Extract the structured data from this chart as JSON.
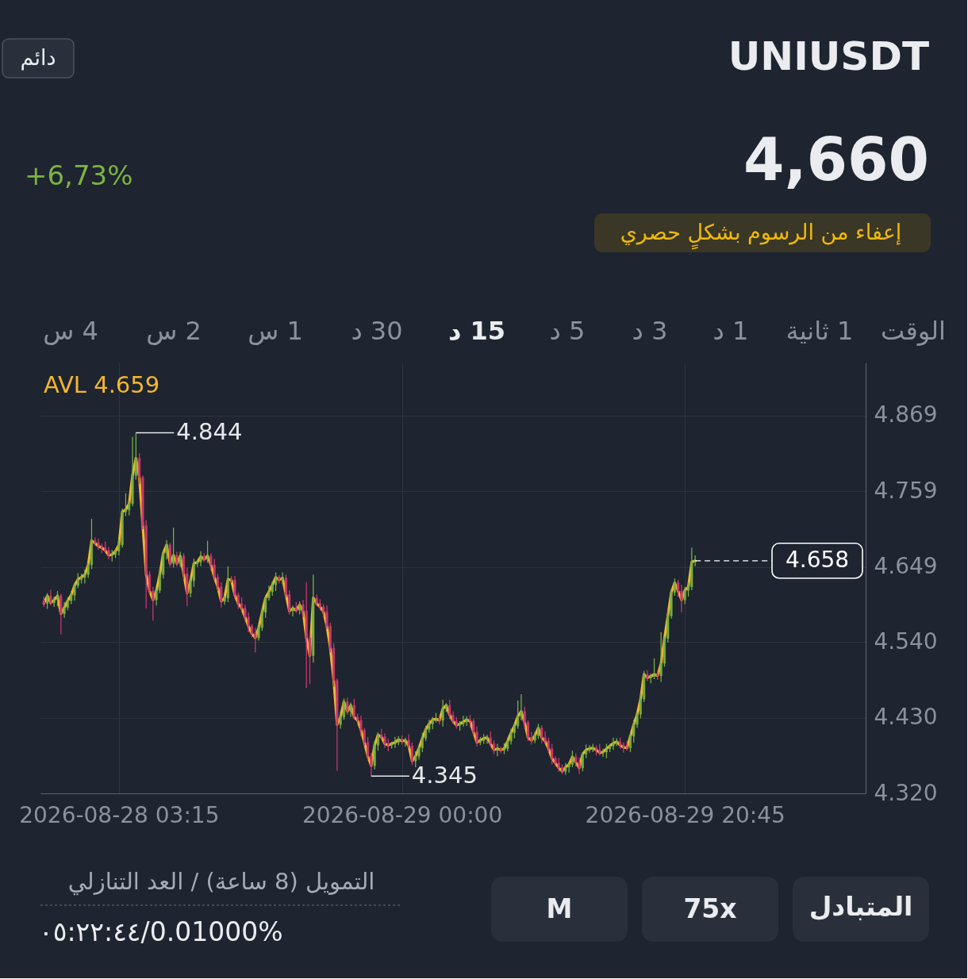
{
  "chart_data": {
    "type": "candlestick",
    "title": "UNIUSDT",
    "annotations": [
      "+6,73%",
      "4,660",
      "إعفاء من الرسوم بشكلٍ حصري",
      "4 س",
      "2 س",
      "1 س",
      "30 د",
      "15 د",
      "5 د",
      "3 د",
      "1 د",
      "1 ثانية",
      "الوقت",
      "دائم",
      "التمويل (8 ساعة) / العد التنازلي",
      "٠٥:٢٢:٤٤/0.01000%",
      "M",
      "75x",
      "المتبادل",
      {
        "text": "4.844",
        "x": "2026-08-28T04:30",
        "y": 4.844
      },
      {
        "text": "4.345",
        "x": "2026-08-28T21:45",
        "y": 4.345
      }
    ],
    "x": [
      "2026-08-27T21:45",
      "2026-08-27T22:00",
      "2026-08-27T22:15",
      "2026-08-27T22:30",
      "2026-08-27T22:45",
      "2026-08-27T23:00",
      "2026-08-27T23:15",
      "2026-08-27T23:30",
      "2026-08-27T23:45",
      "2026-08-28T00:00",
      "2026-08-28T00:15",
      "2026-08-28T00:30",
      "2026-08-28T00:45",
      "2026-08-28T01:00",
      "2026-08-28T01:15",
      "2026-08-28T01:30",
      "2026-08-28T01:45",
      "2026-08-28T02:00",
      "2026-08-28T02:15",
      "2026-08-28T02:30",
      "2026-08-28T02:45",
      "2026-08-28T03:00",
      "2026-08-28T03:15",
      "2026-08-28T03:30",
      "2026-08-28T03:45",
      "2026-08-28T04:00",
      "2026-08-28T04:15",
      "2026-08-28T04:30",
      "2026-08-28T04:45",
      "2026-08-28T05:00",
      "2026-08-28T05:15",
      "2026-08-28T05:30",
      "2026-08-28T05:45",
      "2026-08-28T06:00",
      "2026-08-28T06:15",
      "2026-08-28T06:30",
      "2026-08-28T06:45",
      "2026-08-28T07:00",
      "2026-08-28T07:15",
      "2026-08-28T07:30",
      "2026-08-28T07:45",
      "2026-08-28T08:00",
      "2026-08-28T08:15",
      "2026-08-28T08:30",
      "2026-08-28T08:45",
      "2026-08-28T09:00",
      "2026-08-28T09:15",
      "2026-08-28T09:30",
      "2026-08-28T09:45",
      "2026-08-28T10:00",
      "2026-08-28T10:15",
      "2026-08-28T10:30",
      "2026-08-28T10:45",
      "2026-08-28T11:00",
      "2026-08-28T11:15",
      "2026-08-28T11:30",
      "2026-08-28T11:45",
      "2026-08-28T12:00",
      "2026-08-28T12:15",
      "2026-08-28T12:30",
      "2026-08-28T12:45",
      "2026-08-28T13:00",
      "2026-08-28T13:15",
      "2026-08-28T13:30",
      "2026-08-28T13:45",
      "2026-08-28T14:00",
      "2026-08-28T14:15",
      "2026-08-28T14:30",
      "2026-08-28T14:45",
      "2026-08-28T15:00",
      "2026-08-28T15:15",
      "2026-08-28T15:30",
      "2026-08-28T15:45",
      "2026-08-28T16:00",
      "2026-08-28T16:15",
      "2026-08-28T16:30",
      "2026-08-28T16:45",
      "2026-08-28T17:00",
      "2026-08-28T17:15",
      "2026-08-28T17:30",
      "2026-08-28T17:45",
      "2026-08-28T18:00",
      "2026-08-28T18:15",
      "2026-08-28T18:30",
      "2026-08-28T18:45",
      "2026-08-28T19:00",
      "2026-08-28T19:15",
      "2026-08-28T19:30",
      "2026-08-28T19:45",
      "2026-08-28T20:00",
      "2026-08-28T20:15",
      "2026-08-28T20:30",
      "2026-08-28T20:45",
      "2026-08-28T21:00",
      "2026-08-28T21:15",
      "2026-08-28T21:30",
      "2026-08-28T21:45",
      "2026-08-28T22:00",
      "2026-08-28T22:15",
      "2026-08-28T22:30",
      "2026-08-28T22:45",
      "2026-08-28T23:00",
      "2026-08-28T23:15",
      "2026-08-28T23:30",
      "2026-08-28T23:45",
      "2026-08-29T00:00",
      "2026-08-29T00:15",
      "2026-08-29T00:30",
      "2026-08-29T00:45",
      "2026-08-29T01:00",
      "2026-08-29T01:15",
      "2026-08-29T01:30",
      "2026-08-29T01:45",
      "2026-08-29T02:00",
      "2026-08-29T02:15",
      "2026-08-29T02:30",
      "2026-08-29T02:45",
      "2026-08-29T03:00",
      "2026-08-29T03:15",
      "2026-08-29T03:30",
      "2026-08-29T03:45",
      "2026-08-29T04:00",
      "2026-08-29T04:15",
      "2026-08-29T04:30",
      "2026-08-29T04:45",
      "2026-08-29T05:00",
      "2026-08-29T05:15",
      "2026-08-29T05:30",
      "2026-08-29T05:45",
      "2026-08-29T06:00",
      "2026-08-29T06:15",
      "2026-08-29T06:30",
      "2026-08-29T06:45",
      "2026-08-29T07:00",
      "2026-08-29T07:15",
      "2026-08-29T07:30",
      "2026-08-29T07:45",
      "2026-08-29T08:00",
      "2026-08-29T08:15",
      "2026-08-29T08:30",
      "2026-08-29T08:45",
      "2026-08-29T09:00",
      "2026-08-29T09:15",
      "2026-08-29T09:30",
      "2026-08-29T09:45",
      "2026-08-29T10:00",
      "2026-08-29T10:15",
      "2026-08-29T10:30",
      "2026-08-29T10:45",
      "2026-08-29T11:00",
      "2026-08-29T11:15",
      "2026-08-29T11:30",
      "2026-08-29T11:45",
      "2026-08-29T12:00",
      "2026-08-29T12:15",
      "2026-08-29T12:30",
      "2026-08-29T12:45",
      "2026-08-29T13:00",
      "2026-08-29T13:15",
      "2026-08-29T13:30",
      "2026-08-29T13:45",
      "2026-08-29T14:00",
      "2026-08-29T14:15",
      "2026-08-29T14:30",
      "2026-08-29T14:45",
      "2026-08-29T15:00",
      "2026-08-29T15:15",
      "2026-08-29T15:30",
      "2026-08-29T15:45",
      "2026-08-29T16:00",
      "2026-08-29T16:15",
      "2026-08-29T16:30",
      "2026-08-29T16:45",
      "2026-08-29T17:00",
      "2026-08-29T17:15",
      "2026-08-29T17:30",
      "2026-08-29T17:45",
      "2026-08-29T18:00",
      "2026-08-29T18:15",
      "2026-08-29T18:30",
      "2026-08-29T18:45",
      "2026-08-29T19:00",
      "2026-08-29T19:15",
      "2026-08-29T19:30",
      "2026-08-29T19:45",
      "2026-08-29T20:00",
      "2026-08-29T20:15",
      "2026-08-29T20:30",
      "2026-08-29T20:45",
      "2026-08-29T21:00",
      "2026-08-29T21:15",
      "2026-08-29T21:30"
    ],
    "ohlc": [
      [
        4.6,
        4.606,
        4.591,
        4.596
      ],
      [
        4.596,
        4.611,
        4.588,
        4.607
      ],
      [
        4.607,
        4.616,
        4.593,
        4.597
      ],
      [
        4.597,
        4.606,
        4.591,
        4.601
      ],
      [
        4.601,
        4.614,
        4.592,
        4.607
      ],
      [
        4.607,
        4.61,
        4.551,
        4.581
      ],
      [
        4.581,
        4.598,
        4.575,
        4.59
      ],
      [
        4.59,
        4.605,
        4.586,
        4.6
      ],
      [
        4.6,
        4.614,
        4.595,
        4.608
      ],
      [
        4.608,
        4.626,
        4.6,
        4.622
      ],
      [
        4.622,
        4.64,
        4.618,
        4.631
      ],
      [
        4.631,
        4.639,
        4.625,
        4.634
      ],
      [
        4.634,
        4.645,
        4.625,
        4.638
      ],
      [
        4.638,
        4.655,
        4.633,
        4.652
      ],
      [
        4.652,
        4.719,
        4.646,
        4.687
      ],
      [
        4.687,
        4.692,
        4.68,
        4.684
      ],
      [
        4.684,
        4.69,
        4.674,
        4.679
      ],
      [
        4.679,
        4.683,
        4.669,
        4.677
      ],
      [
        4.677,
        4.686,
        4.669,
        4.673
      ],
      [
        4.673,
        4.678,
        4.66,
        4.666
      ],
      [
        4.666,
        4.674,
        4.657,
        4.667
      ],
      [
        4.667,
        4.675,
        4.662,
        4.672
      ],
      [
        4.672,
        4.689,
        4.666,
        4.681
      ],
      [
        4.681,
        4.734,
        4.677,
        4.729
      ],
      [
        4.729,
        4.756,
        4.723,
        4.732
      ],
      [
        4.732,
        4.745,
        4.724,
        4.741
      ],
      [
        4.741,
        4.838,
        4.737,
        4.782
      ],
      [
        4.782,
        4.844,
        4.776,
        4.807
      ],
      [
        4.807,
        4.814,
        4.77,
        4.779
      ],
      [
        4.779,
        4.782,
        4.704,
        4.709
      ],
      [
        4.709,
        4.717,
        4.589,
        4.638
      ],
      [
        4.638,
        4.643,
        4.61,
        4.614
      ],
      [
        4.614,
        4.62,
        4.571,
        4.601
      ],
      [
        4.601,
        4.619,
        4.593,
        4.615
      ],
      [
        4.615,
        4.647,
        4.611,
        4.638
      ],
      [
        4.638,
        4.674,
        4.632,
        4.669
      ],
      [
        4.669,
        4.688,
        4.66,
        4.681
      ],
      [
        4.681,
        4.684,
        4.649,
        4.654
      ],
      [
        4.654,
        4.706,
        4.648,
        4.666
      ],
      [
        4.666,
        4.671,
        4.65,
        4.654
      ],
      [
        4.654,
        4.671,
        4.649,
        4.665
      ],
      [
        4.665,
        4.669,
        4.631,
        4.639
      ],
      [
        4.639,
        4.648,
        4.592,
        4.611
      ],
      [
        4.611,
        4.634,
        4.605,
        4.629
      ],
      [
        4.629,
        4.661,
        4.62,
        4.654
      ],
      [
        4.654,
        4.659,
        4.649,
        4.656
      ],
      [
        4.656,
        4.672,
        4.65,
        4.664
      ],
      [
        4.664,
        4.669,
        4.656,
        4.66
      ],
      [
        4.66,
        4.687,
        4.655,
        4.665
      ],
      [
        4.665,
        4.669,
        4.644,
        4.652
      ],
      [
        4.652,
        4.661,
        4.63,
        4.634
      ],
      [
        4.634,
        4.639,
        4.614,
        4.62
      ],
      [
        4.62,
        4.627,
        4.59,
        4.599
      ],
      [
        4.599,
        4.607,
        4.594,
        4.604
      ],
      [
        4.604,
        4.65,
        4.598,
        4.631
      ],
      [
        4.631,
        4.636,
        4.626,
        4.63
      ],
      [
        4.63,
        4.636,
        4.603,
        4.608
      ],
      [
        4.608,
        4.612,
        4.588,
        4.596
      ],
      [
        4.596,
        4.605,
        4.585,
        4.589
      ],
      [
        4.589,
        4.594,
        4.57,
        4.576
      ],
      [
        4.576,
        4.583,
        4.554,
        4.563
      ],
      [
        4.563,
        4.566,
        4.547,
        4.552
      ],
      [
        4.552,
        4.56,
        4.525,
        4.546
      ],
      [
        4.546,
        4.566,
        4.542,
        4.561
      ],
      [
        4.561,
        4.589,
        4.556,
        4.583
      ],
      [
        4.583,
        4.608,
        4.575,
        4.604
      ],
      [
        4.604,
        4.622,
        4.6,
        4.613
      ],
      [
        4.613,
        4.628,
        4.607,
        4.623
      ],
      [
        4.623,
        4.641,
        4.614,
        4.634
      ],
      [
        4.634,
        4.637,
        4.625,
        4.63
      ],
      [
        4.63,
        4.641,
        4.624,
        4.633
      ],
      [
        4.633,
        4.638,
        4.605,
        4.609
      ],
      [
        4.609,
        4.615,
        4.58,
        4.585
      ],
      [
        4.585,
        4.593,
        4.577,
        4.589
      ],
      [
        4.589,
        4.598,
        4.582,
        4.586
      ],
      [
        4.586,
        4.599,
        4.58,
        4.594
      ],
      [
        4.594,
        4.601,
        4.576,
        4.585
      ],
      [
        4.585,
        4.627,
        4.473,
        4.546
      ],
      [
        4.546,
        4.552,
        4.479,
        4.52
      ],
      [
        4.52,
        4.638,
        4.51,
        4.604
      ],
      [
        4.604,
        4.609,
        4.592,
        4.596
      ],
      [
        4.596,
        4.602,
        4.586,
        4.591
      ],
      [
        4.591,
        4.595,
        4.576,
        4.584
      ],
      [
        4.584,
        4.593,
        4.559,
        4.563
      ],
      [
        4.563,
        4.568,
        4.525,
        4.531
      ],
      [
        4.531,
        4.538,
        4.475,
        4.484
      ],
      [
        4.484,
        4.487,
        4.353,
        4.42
      ],
      [
        4.42,
        4.439,
        4.414,
        4.431
      ],
      [
        4.431,
        4.458,
        4.427,
        4.453
      ],
      [
        4.453,
        4.459,
        4.434,
        4.439
      ],
      [
        4.439,
        4.452,
        4.431,
        4.448
      ],
      [
        4.448,
        4.457,
        4.427,
        4.431
      ],
      [
        4.431,
        4.436,
        4.42,
        4.426
      ],
      [
        4.426,
        4.433,
        4.403,
        4.412
      ],
      [
        4.412,
        4.415,
        4.389,
        4.394
      ],
      [
        4.394,
        4.402,
        4.368,
        4.374
      ],
      [
        4.374,
        4.379,
        4.345,
        4.36
      ],
      [
        4.36,
        4.396,
        4.355,
        4.39
      ],
      [
        4.39,
        4.409,
        4.382,
        4.405
      ],
      [
        4.405,
        4.414,
        4.398,
        4.402
      ],
      [
        4.402,
        4.407,
        4.386,
        4.392
      ],
      [
        4.392,
        4.399,
        4.381,
        4.39
      ],
      [
        4.39,
        4.395,
        4.385,
        4.392
      ],
      [
        4.392,
        4.402,
        4.386,
        4.394
      ],
      [
        4.394,
        4.403,
        4.39,
        4.398
      ],
      [
        4.398,
        4.404,
        4.391,
        4.396
      ],
      [
        4.396,
        4.401,
        4.388,
        4.397
      ],
      [
        4.397,
        4.406,
        4.385,
        4.389
      ],
      [
        4.389,
        4.394,
        4.361,
        4.367
      ],
      [
        4.367,
        4.381,
        4.358,
        4.374
      ],
      [
        4.374,
        4.389,
        4.369,
        4.386
      ],
      [
        4.386,
        4.408,
        4.38,
        4.4
      ],
      [
        4.4,
        4.418,
        4.396,
        4.413
      ],
      [
        4.413,
        4.427,
        4.408,
        4.421
      ],
      [
        4.421,
        4.431,
        4.413,
        4.427
      ],
      [
        4.427,
        4.437,
        4.423,
        4.428
      ],
      [
        4.428,
        4.433,
        4.42,
        4.426
      ],
      [
        4.426,
        4.456,
        4.417,
        4.443
      ],
      [
        4.443,
        4.451,
        4.438,
        4.448
      ],
      [
        4.448,
        4.456,
        4.428,
        4.434
      ],
      [
        4.434,
        4.439,
        4.421,
        4.425
      ],
      [
        4.425,
        4.431,
        4.414,
        4.419
      ],
      [
        4.419,
        4.425,
        4.411,
        4.421
      ],
      [
        4.421,
        4.433,
        4.417,
        4.424
      ],
      [
        4.424,
        4.432,
        4.418,
        4.427
      ],
      [
        4.427,
        4.434,
        4.416,
        4.425
      ],
      [
        4.425,
        4.428,
        4.404,
        4.409
      ],
      [
        4.409,
        4.417,
        4.388,
        4.394
      ],
      [
        4.394,
        4.402,
        4.39,
        4.397
      ],
      [
        4.397,
        4.406,
        4.392,
        4.4
      ],
      [
        4.4,
        4.405,
        4.392,
        4.401
      ],
      [
        4.401,
        4.41,
        4.388,
        4.392
      ],
      [
        4.392,
        4.397,
        4.377,
        4.383
      ],
      [
        4.383,
        4.392,
        4.374,
        4.385
      ],
      [
        4.385,
        4.388,
        4.378,
        4.383
      ],
      [
        4.383,
        4.393,
        4.377,
        4.385
      ],
      [
        4.385,
        4.401,
        4.381,
        4.396
      ],
      [
        4.396,
        4.414,
        4.391,
        4.408
      ],
      [
        4.408,
        4.422,
        4.4,
        4.418
      ],
      [
        4.418,
        4.455,
        4.414,
        4.432
      ],
      [
        4.432,
        4.464,
        4.426,
        4.439
      ],
      [
        4.439,
        4.446,
        4.414,
        4.423
      ],
      [
        4.423,
        4.426,
        4.396,
        4.401
      ],
      [
        4.401,
        4.409,
        4.391,
        4.397
      ],
      [
        4.397,
        4.409,
        4.393,
        4.404
      ],
      [
        4.404,
        4.421,
        4.399,
        4.415
      ],
      [
        4.415,
        4.419,
        4.393,
        4.401
      ],
      [
        4.401,
        4.41,
        4.392,
        4.396
      ],
      [
        4.396,
        4.401,
        4.379,
        4.385
      ],
      [
        4.385,
        4.392,
        4.362,
        4.371
      ],
      [
        4.371,
        4.374,
        4.359,
        4.364
      ],
      [
        4.364,
        4.372,
        4.351,
        4.357
      ],
      [
        4.357,
        4.362,
        4.348,
        4.352
      ],
      [
        4.352,
        4.364,
        4.347,
        4.358
      ],
      [
        4.358,
        4.366,
        4.35,
        4.362
      ],
      [
        4.362,
        4.382,
        4.358,
        4.373
      ],
      [
        4.373,
        4.378,
        4.359,
        4.365
      ],
      [
        4.365,
        4.372,
        4.348,
        4.357
      ],
      [
        4.357,
        4.38,
        4.352,
        4.377
      ],
      [
        4.377,
        4.391,
        4.371,
        4.383
      ],
      [
        4.383,
        4.39,
        4.379,
        4.385
      ],
      [
        4.385,
        4.392,
        4.38,
        4.386
      ],
      [
        4.386,
        4.39,
        4.375,
        4.383
      ],
      [
        4.383,
        4.392,
        4.375,
        4.379
      ],
      [
        4.379,
        4.385,
        4.373,
        4.38
      ],
      [
        4.38,
        4.392,
        4.371,
        4.385
      ],
      [
        4.385,
        4.392,
        4.38,
        4.389
      ],
      [
        4.389,
        4.401,
        4.383,
        4.393
      ],
      [
        4.393,
        4.4,
        4.389,
        4.395
      ],
      [
        4.395,
        4.401,
        4.385,
        4.39
      ],
      [
        4.39,
        4.394,
        4.379,
        4.387
      ],
      [
        4.387,
        4.396,
        4.382,
        4.386
      ],
      [
        4.386,
        4.408,
        4.38,
        4.403
      ],
      [
        4.403,
        4.427,
        4.394,
        4.42
      ],
      [
        4.42,
        4.438,
        4.415,
        4.435
      ],
      [
        4.435,
        4.465,
        4.429,
        4.457
      ],
      [
        4.457,
        4.498,
        4.453,
        4.493
      ],
      [
        4.493,
        4.499,
        4.483,
        4.488
      ],
      [
        4.488,
        4.494,
        4.48,
        4.49
      ],
      [
        4.49,
        4.516,
        4.486,
        4.493
      ],
      [
        4.493,
        4.498,
        4.485,
        4.491
      ],
      [
        4.491,
        4.554,
        4.482,
        4.509
      ],
      [
        4.509,
        4.548,
        4.504,
        4.545
      ],
      [
        4.545,
        4.586,
        4.539,
        4.578
      ],
      [
        4.578,
        4.617,
        4.574,
        4.612
      ],
      [
        4.612,
        4.632,
        4.607,
        4.626
      ],
      [
        4.626,
        4.63,
        4.606,
        4.614
      ],
      [
        4.614,
        4.623,
        4.583,
        4.601
      ],
      [
        4.601,
        4.62,
        4.595,
        4.615
      ],
      [
        4.615,
        4.627,
        4.606,
        4.62
      ],
      [
        4.62,
        4.677,
        4.615,
        4.656
      ],
      [
        4.656,
        4.666,
        4.65,
        4.658
      ]
    ],
    "colors": [
      "#c9386f",
      "#76b041",
      "#c9386f",
      "#76b041",
      "#76b041",
      "#c9386f",
      "#76b041",
      "#76b041",
      "#76b041",
      "#76b041",
      "#76b041",
      "#76b041",
      "#76b041",
      "#76b041",
      "#76b041",
      "#c9386f",
      "#c9386f",
      "#c9386f",
      "#c9386f",
      "#c9386f",
      "#76b041",
      "#76b041",
      "#76b041",
      "#76b041",
      "#76b041",
      "#76b041",
      "#76b041",
      "#76b041",
      "#c9386f",
      "#c9386f",
      "#c9386f",
      "#c9386f",
      "#c9386f",
      "#76b041",
      "#76b041",
      "#76b041",
      "#76b041",
      "#c9386f",
      "#76b041",
      "#c9386f",
      "#76b041",
      "#c9386f",
      "#c9386f",
      "#76b041",
      "#76b041",
      "#76b041",
      "#76b041",
      "#c9386f",
      "#76b041",
      "#c9386f",
      "#c9386f",
      "#c9386f",
      "#c9386f",
      "#76b041",
      "#76b041",
      "#c9386f",
      "#c9386f",
      "#c9386f",
      "#c9386f",
      "#c9386f",
      "#c9386f",
      "#c9386f",
      "#c9386f",
      "#76b041",
      "#76b041",
      "#76b041",
      "#76b041",
      "#76b041",
      "#76b041",
      "#c9386f",
      "#76b041",
      "#c9386f",
      "#c9386f",
      "#76b041",
      "#c9386f",
      "#76b041",
      "#c9386f",
      "#c9386f",
      "#c9386f",
      "#76b041",
      "#c9386f",
      "#c9386f",
      "#c9386f",
      "#c9386f",
      "#c9386f",
      "#c9386f",
      "#c9386f",
      "#76b041",
      "#76b041",
      "#c9386f",
      "#76b041",
      "#c9386f",
      "#c9386f",
      "#c9386f",
      "#c9386f",
      "#c9386f",
      "#c9386f",
      "#76b041",
      "#76b041",
      "#c9386f",
      "#c9386f",
      "#c9386f",
      "#76b041",
      "#76b041",
      "#76b041",
      "#c9386f",
      "#76b041",
      "#c9386f",
      "#c9386f",
      "#76b041",
      "#76b041",
      "#76b041",
      "#76b041",
      "#76b041",
      "#76b041",
      "#76b041",
      "#c9386f",
      "#76b041",
      "#76b041",
      "#c9386f",
      "#c9386f",
      "#c9386f",
      "#76b041",
      "#76b041",
      "#76b041",
      "#c9386f",
      "#c9386f",
      "#c9386f",
      "#76b041",
      "#76b041",
      "#76b041",
      "#c9386f",
      "#c9386f",
      "#76b041",
      "#c9386f",
      "#76b041",
      "#76b041",
      "#76b041",
      "#76b041",
      "#76b041",
      "#76b041",
      "#c9386f",
      "#c9386f",
      "#c9386f",
      "#76b041",
      "#76b041",
      "#c9386f",
      "#c9386f",
      "#c9386f",
      "#c9386f",
      "#c9386f",
      "#c9386f",
      "#c9386f",
      "#76b041",
      "#76b041",
      "#76b041",
      "#c9386f",
      "#c9386f",
      "#76b041",
      "#76b041",
      "#76b041",
      "#76b041",
      "#c9386f",
      "#c9386f",
      "#76b041",
      "#76b041",
      "#76b041",
      "#76b041",
      "#76b041",
      "#c9386f",
      "#c9386f",
      "#c9386f",
      "#76b041",
      "#76b041",
      "#76b041",
      "#76b041",
      "#76b041",
      "#c9386f",
      "#76b041",
      "#76b041",
      "#c9386f",
      "#76b041",
      "#76b041",
      "#76b041",
      "#76b041",
      "#76b041",
      "#c9386f",
      "#c9386f",
      "#76b041",
      "#76b041",
      "#76b041",
      "#76b041"
    ],
    "series": [
      {
        "name": "AVL 4.659",
        "type": "line",
        "color": "#f5b82e",
        "values": [
          4.596,
          4.607,
          4.597,
          4.601,
          4.607,
          4.581,
          4.59,
          4.6,
          4.608,
          4.622,
          4.631,
          4.634,
          4.638,
          4.652,
          4.687,
          4.684,
          4.679,
          4.677,
          4.673,
          4.666,
          4.667,
          4.672,
          4.681,
          4.729,
          4.732,
          4.741,
          4.782,
          4.807,
          4.779,
          4.709,
          4.638,
          4.614,
          4.601,
          4.615,
          4.638,
          4.669,
          4.681,
          4.654,
          4.666,
          4.654,
          4.665,
          4.639,
          4.611,
          4.629,
          4.654,
          4.656,
          4.664,
          4.66,
          4.665,
          4.652,
          4.634,
          4.62,
          4.599,
          4.604,
          4.631,
          4.63,
          4.608,
          4.596,
          4.589,
          4.576,
          4.563,
          4.552,
          4.546,
          4.561,
          4.583,
          4.604,
          4.613,
          4.623,
          4.634,
          4.63,
          4.633,
          4.609,
          4.585,
          4.589,
          4.586,
          4.594,
          4.585,
          4.546,
          4.52,
          4.604,
          4.596,
          4.591,
          4.584,
          4.563,
          4.531,
          4.484,
          4.42,
          4.431,
          4.453,
          4.439,
          4.448,
          4.431,
          4.426,
          4.412,
          4.394,
          4.374,
          4.36,
          4.39,
          4.405,
          4.402,
          4.392,
          4.39,
          4.392,
          4.394,
          4.398,
          4.396,
          4.397,
          4.389,
          4.367,
          4.374,
          4.386,
          4.4,
          4.413,
          4.421,
          4.427,
          4.428,
          4.426,
          4.443,
          4.448,
          4.434,
          4.425,
          4.419,
          4.421,
          4.424,
          4.427,
          4.425,
          4.409,
          4.394,
          4.397,
          4.4,
          4.401,
          4.392,
          4.383,
          4.385,
          4.383,
          4.385,
          4.396,
          4.408,
          4.418,
          4.432,
          4.439,
          4.423,
          4.401,
          4.397,
          4.404,
          4.415,
          4.401,
          4.396,
          4.385,
          4.371,
          4.364,
          4.357,
          4.352,
          4.358,
          4.362,
          4.373,
          4.365,
          4.357,
          4.377,
          4.383,
          4.385,
          4.386,
          4.383,
          4.379,
          4.38,
          4.385,
          4.389,
          4.393,
          4.395,
          4.39,
          4.387,
          4.386,
          4.403,
          4.42,
          4.435,
          4.457,
          4.493,
          4.488,
          4.49,
          4.493,
          4.491,
          4.509,
          4.545,
          4.578,
          4.612,
          4.626,
          4.614,
          4.601,
          4.615,
          4.62,
          4.656,
          4.658
        ]
      }
    ],
    "xlim": [
      "2026-08-27T21:30",
      "2026-08-30T10:00"
    ],
    "xticks": [
      {
        "value": "2026-08-28T03:15",
        "label": "2026-08-28 03:15"
      },
      {
        "value": "2026-08-29T00:00",
        "label": "2026-08-29 00:00"
      },
      {
        "value": "2026-08-29T20:45",
        "label": "2026-08-29 20:45"
      }
    ],
    "ylim": [
      4.32,
      4.946
    ],
    "yticks": [
      {
        "value": 4.32,
        "label": "4.320"
      },
      {
        "value": 4.43,
        "label": "4.430"
      },
      {
        "value": 4.54,
        "label": "4.540"
      },
      4.649,
      4.759,
      4.869
    ],
    "ref_lines": [
      {
        "axis": "y",
        "value": 4.658,
        "label": "4.658",
        "line_style": "dashed",
        "color": "#ffffff"
      }
    ],
    "grid": true,
    "legend": "top left",
    "line_style": "solid"
  }
}
